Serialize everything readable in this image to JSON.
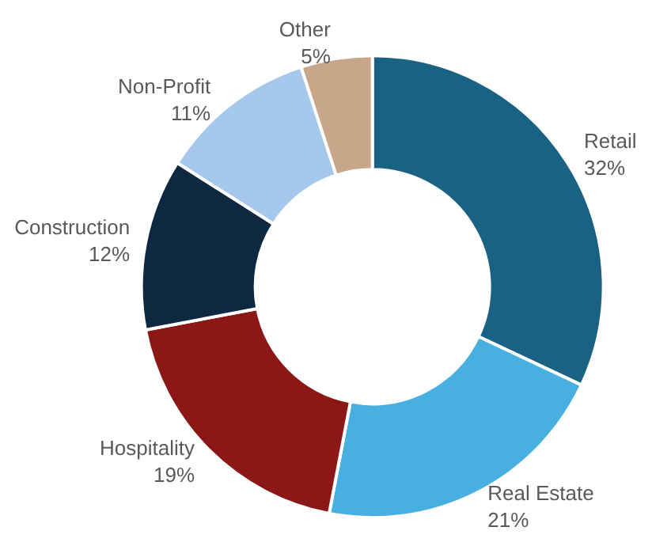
{
  "chart_data": {
    "type": "donut",
    "categories": [
      "Retail",
      "Real Estate",
      "Hospitality",
      "Construction",
      "Non-Profit",
      "Other"
    ],
    "values": [
      32,
      21,
      19,
      12,
      11,
      5
    ],
    "value_labels": [
      "32%",
      "21%",
      "19%",
      "12%",
      "11%",
      "5%"
    ],
    "colors": [
      "#1a6283",
      "#48b0e0",
      "#8b1717",
      "#0e2841",
      "#a6c8ec",
      "#c8a68a"
    ],
    "legend": false
  }
}
